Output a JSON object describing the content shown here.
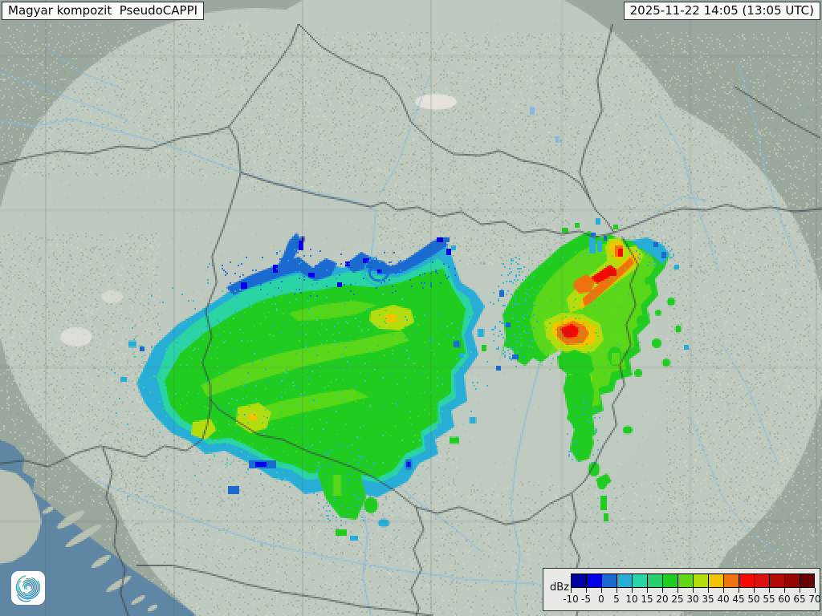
{
  "header": {
    "title": "Magyar kompozit  PseudoCAPPI",
    "timestamp": "2025-11-22 14:05 (13:05 UTC)"
  },
  "legend": {
    "unit": "dBz",
    "tick_labels": [
      "-10",
      "-5",
      "0",
      "5",
      "10",
      "15",
      "20",
      "25",
      "30",
      "35",
      "40",
      "45",
      "50",
      "55",
      "60",
      "65",
      "70"
    ],
    "colors": [
      "#0000a0",
      "#0000e8",
      "#1a6ad0",
      "#28aed6",
      "#2bd4a4",
      "#28d06c",
      "#20cc20",
      "#60d818",
      "#b4dd10",
      "#f2c400",
      "#ef7210",
      "#f50800",
      "#d81010",
      "#b50808",
      "#970202",
      "#6b0000"
    ]
  },
  "logo": {
    "name": "hungaromet-spiral-logo"
  },
  "map": {
    "palette": {
      "terrain": "#9aa89e",
      "terrain_light": "#d9d7c4",
      "terrain_shadow": "#8fa394",
      "coverage": "#e1ebe0",
      "plain": "#c2cfc4",
      "sea": "#5f86a3",
      "island": "#b9c2b2",
      "river": "#87b7dd",
      "border": "#3c4244",
      "grid": "#565b58"
    }
  }
}
